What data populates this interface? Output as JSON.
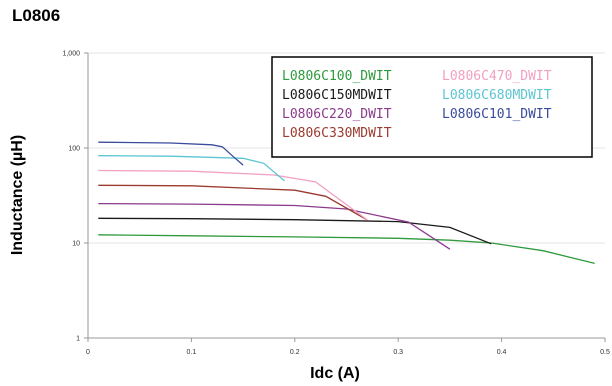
{
  "chart_data": {
    "type": "line",
    "title": "L0806",
    "xlabel": "Idc (A)",
    "ylabel": "Inductance (µH)",
    "x_scale": "linear",
    "y_scale": "log",
    "xlim": [
      0,
      0.5
    ],
    "ylim": [
      1,
      1000
    ],
    "x_ticks": [
      "0",
      "0.1",
      "0.2",
      "0.3",
      "0.4",
      "0.5"
    ],
    "y_ticks": [
      "1",
      "10",
      "100",
      "1,000"
    ],
    "grid": "horizontal",
    "legend_position": "top-right",
    "series": [
      {
        "name": "L0806C100_DWIT",
        "color": "#2e9a3c",
        "points": [
          [
            0.01,
            12.2
          ],
          [
            0.1,
            11.9
          ],
          [
            0.2,
            11.6
          ],
          [
            0.3,
            11.2
          ],
          [
            0.35,
            10.7
          ],
          [
            0.39,
            10.0
          ],
          [
            0.44,
            8.3
          ],
          [
            0.49,
            6.1
          ]
        ]
      },
      {
        "name": "L0806C150MDWIT",
        "color": "#1a1a1a",
        "points": [
          [
            0.01,
            18.2
          ],
          [
            0.1,
            18.0
          ],
          [
            0.2,
            17.6
          ],
          [
            0.3,
            16.8
          ],
          [
            0.35,
            14.6
          ],
          [
            0.39,
            9.8
          ]
        ]
      },
      {
        "name": "L0806C220_DWIT",
        "color": "#8b3a8b",
        "points": [
          [
            0.01,
            26.0
          ],
          [
            0.1,
            25.7
          ],
          [
            0.2,
            24.8
          ],
          [
            0.25,
            22.8
          ],
          [
            0.31,
            16.6
          ],
          [
            0.35,
            8.6
          ]
        ]
      },
      {
        "name": "L0806C330MDWIT",
        "color": "#9b3a2e",
        "points": [
          [
            0.01,
            40.5
          ],
          [
            0.1,
            40.0
          ],
          [
            0.2,
            36.0
          ],
          [
            0.23,
            31.0
          ],
          [
            0.27,
            17.5
          ]
        ]
      },
      {
        "name": "L0806C470_DWIT",
        "color": "#f2a0c2",
        "points": [
          [
            0.01,
            58.0
          ],
          [
            0.1,
            57.0
          ],
          [
            0.18,
            52.0
          ],
          [
            0.22,
            44.0
          ],
          [
            0.27,
            17.5
          ]
        ]
      },
      {
        "name": "L0806C680MDWIT",
        "color": "#5cc5d2",
        "points": [
          [
            0.01,
            83.0
          ],
          [
            0.08,
            82.0
          ],
          [
            0.15,
            78.0
          ],
          [
            0.17,
            69.0
          ],
          [
            0.19,
            45.0
          ]
        ]
      },
      {
        "name": "L0806C101_DWIT",
        "color": "#3a4b9c",
        "points": [
          [
            0.01,
            115.0
          ],
          [
            0.08,
            113.0
          ],
          [
            0.12,
            108.0
          ],
          [
            0.13,
            103.0
          ],
          [
            0.14,
            82.0
          ],
          [
            0.15,
            66.0
          ]
        ]
      }
    ]
  }
}
